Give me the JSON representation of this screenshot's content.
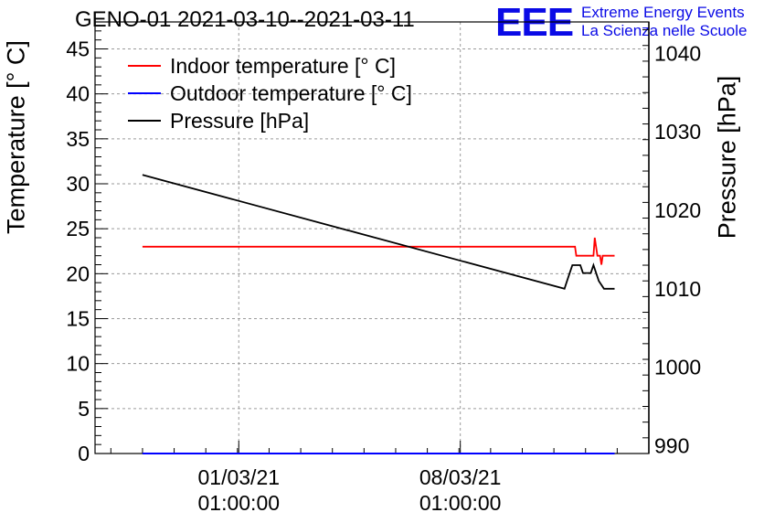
{
  "header": {
    "title": "GENO-01 2021-03-10--2021-03-11",
    "logo_mark": "EEE",
    "logo_line1": "Extreme Energy Events",
    "logo_line2": "La Scienza nelle Scuole"
  },
  "colors": {
    "indoor": "#ff0000",
    "outdoor": "#0000ff",
    "pressure": "#000000",
    "logo": "#0a0ae6",
    "grid": "#9a9a9a"
  },
  "chart_data": {
    "type": "line",
    "title": "GENO-01 2021-03-10--2021-03-11",
    "ylabel": "Temperature [° C]",
    "y2label": "Pressure [hPa]",
    "ylim": [
      0,
      48
    ],
    "y2lim": [
      989,
      1044
    ],
    "xlim": [
      "2021-02-24T12:00",
      "2021-03-14T00:00"
    ],
    "y_ticks": [
      0,
      5,
      10,
      15,
      20,
      25,
      30,
      35,
      40,
      45
    ],
    "y2_ticks": [
      990,
      1000,
      1010,
      1020,
      1030,
      1040
    ],
    "x_ticks": [
      {
        "x": "2021-03-01T01:00",
        "line1": "01/03/21",
        "line2": "01:00:00"
      },
      {
        "x": "2021-03-08T01:00",
        "line1": "08/03/21",
        "line2": "01:00:00"
      }
    ],
    "grid": true,
    "legend_position": "top-left",
    "series": [
      {
        "name": "Indoor temperature [° C]",
        "axis": "left",
        "color": "#ff0000",
        "points": [
          [
            "2021-02-26T00:00",
            23.0
          ],
          [
            "2021-03-11T16:00",
            23.0
          ],
          [
            "2021-03-11T17:00",
            22.0
          ],
          [
            "2021-03-12T06:00",
            22.0
          ],
          [
            "2021-03-12T07:00",
            24.0
          ],
          [
            "2021-03-12T09:00",
            22.0
          ],
          [
            "2021-03-12T11:00",
            22.0
          ],
          [
            "2021-03-12T12:00",
            21.0
          ],
          [
            "2021-03-12T13:00",
            22.0
          ],
          [
            "2021-03-12T22:00",
            22.0
          ]
        ]
      },
      {
        "name": "Outdoor temperature [° C]",
        "axis": "left",
        "color": "#0000ff",
        "points": [
          [
            "2021-02-26T00:00",
            0.0
          ],
          [
            "2021-03-12T22:00",
            0.0
          ]
        ]
      },
      {
        "name": "Pressure [hPa]",
        "axis": "right",
        "color": "#000000",
        "points": [
          [
            "2021-02-26T00:00",
            1024.5
          ],
          [
            "2021-03-11T08:00",
            1010.0
          ],
          [
            "2021-03-11T10:00",
            1011.0
          ],
          [
            "2021-03-11T12:00",
            1012.0
          ],
          [
            "2021-03-11T14:00",
            1013.0
          ],
          [
            "2021-03-11T20:00",
            1013.0
          ],
          [
            "2021-03-11T22:00",
            1012.0
          ],
          [
            "2021-03-12T04:00",
            1012.0
          ],
          [
            "2021-03-12T06:00",
            1013.0
          ],
          [
            "2021-03-12T08:00",
            1012.0
          ],
          [
            "2021-03-12T10:00",
            1011.0
          ],
          [
            "2021-03-12T14:00",
            1010.0
          ],
          [
            "2021-03-12T22:00",
            1010.0
          ]
        ]
      }
    ]
  }
}
